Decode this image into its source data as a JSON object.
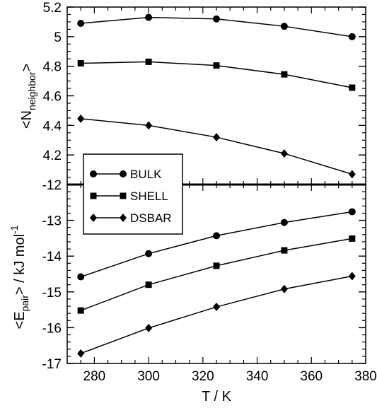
{
  "chart_data": [
    {
      "type": "line",
      "panel": "top",
      "ylabel_main": "<N",
      "ylabel_sub": "neighbor",
      "ylabel_end": ">",
      "x": [
        275,
        300,
        325,
        350,
        375
      ],
      "xlim": [
        270,
        380
      ],
      "ylim": [
        4.0,
        5.2
      ],
      "yticks": [
        4.2,
        4.4,
        4.6,
        4.8,
        5,
        5.2
      ],
      "ytick_labels": [
        "4.2",
        "4.4",
        "4.6",
        "4.8",
        "5",
        "5.2"
      ],
      "series": [
        {
          "name": "BULK",
          "marker": "circle",
          "values": [
            5.09,
            5.13,
            5.12,
            5.07,
            5.0
          ]
        },
        {
          "name": "SHELL",
          "marker": "square",
          "values": [
            4.82,
            4.83,
            4.805,
            4.745,
            4.655
          ]
        },
        {
          "name": "DSBAR",
          "marker": "diamond",
          "values": [
            4.445,
            4.4,
            4.32,
            4.21,
            4.07
          ]
        }
      ],
      "grid": false
    },
    {
      "type": "line",
      "panel": "bottom",
      "xlabel": "T / K",
      "ylabel_main": "<E",
      "ylabel_sub": "pair",
      "ylabel_end": "> / kJ mol",
      "ylabel_sup": "-1",
      "x": [
        275,
        300,
        325,
        350,
        375
      ],
      "xlim": [
        270,
        380
      ],
      "xticks": [
        280,
        300,
        320,
        340,
        360,
        380
      ],
      "xtick_labels": [
        "280",
        "300",
        "320",
        "340",
        "360",
        "380"
      ],
      "ylim": [
        -17,
        -12
      ],
      "yticks": [
        -17,
        -16,
        -15,
        -14,
        -13,
        -12
      ],
      "ytick_labels": [
        "-17",
        "-16",
        "-15",
        "-14",
        "-13",
        "-12"
      ],
      "series": [
        {
          "name": "BULK",
          "marker": "circle",
          "values": [
            -14.58,
            -13.93,
            -13.43,
            -13.06,
            -12.76
          ]
        },
        {
          "name": "SHELL",
          "marker": "square",
          "values": [
            -15.52,
            -14.8,
            -14.27,
            -13.84,
            -13.51
          ]
        },
        {
          "name": "DSBAR",
          "marker": "diamond",
          "values": [
            -16.72,
            -16.01,
            -15.42,
            -14.92,
            -14.56
          ]
        }
      ],
      "grid": false
    }
  ],
  "legend": {
    "placement": "bottom-left of upper panel",
    "entries": [
      {
        "label": "BULK",
        "marker": "circle"
      },
      {
        "label": "SHELL",
        "marker": "square"
      },
      {
        "label": "DSBAR",
        "marker": "diamond"
      }
    ]
  },
  "colors": {
    "line": "#000000",
    "marker": "#000000",
    "background": "#ffffff"
  }
}
